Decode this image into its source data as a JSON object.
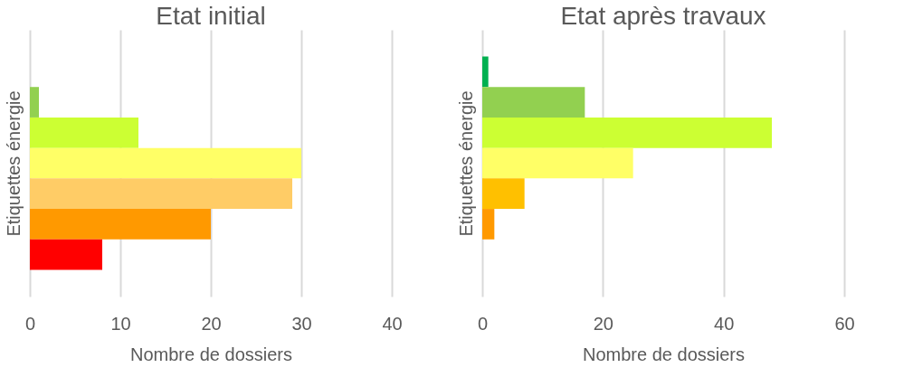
{
  "chart_data": [
    {
      "type": "bar",
      "orientation": "horizontal",
      "title": "Etat initial",
      "xlabel": "Nombre de dossiers",
      "ylabel": "Etiquettes énergie",
      "categories": [
        null
      ],
      "series": [
        {
          "values": [
            null
          ]
        },
        {
          "color": "#92d050",
          "values": [
            1
          ]
        },
        {
          "color": "#ccff33",
          "values": [
            12
          ]
        },
        {
          "color": "#ffff66",
          "values": [
            30
          ]
        },
        {
          "color": "#ffcc66",
          "values": [
            29
          ]
        },
        {
          "color": "#ff9900",
          "values": [
            20
          ]
        },
        {
          "color": "#ff0000",
          "values": [
            8
          ]
        }
      ],
      "xlim": [
        0,
        40
      ],
      "xticks": [
        0,
        10,
        20,
        30,
        40
      ],
      "grid": "x",
      "tick_labels": "x"
    },
    {
      "type": "bar",
      "orientation": "horizontal",
      "title": "Etat après travaux",
      "xlabel": "Nombre de dossiers",
      "ylabel": "Etiquettes énergie",
      "categories": [
        null
      ],
      "series": [
        {
          "color": "#00b050",
          "values": [
            1
          ]
        },
        {
          "color": "#92d050",
          "values": [
            17
          ]
        },
        {
          "color": "#ccff33",
          "values": [
            48
          ]
        },
        {
          "color": "#ffff66",
          "values": [
            25
          ]
        },
        {
          "color": "#ffc000",
          "values": [
            7
          ]
        },
        {
          "color": "#ff9900",
          "values": [
            2
          ]
        },
        {
          "values": [
            null
          ]
        }
      ],
      "xlim": [
        0,
        60
      ],
      "xticks": [
        0,
        20,
        40,
        60
      ],
      "grid": "x",
      "tick_labels": "x"
    }
  ]
}
